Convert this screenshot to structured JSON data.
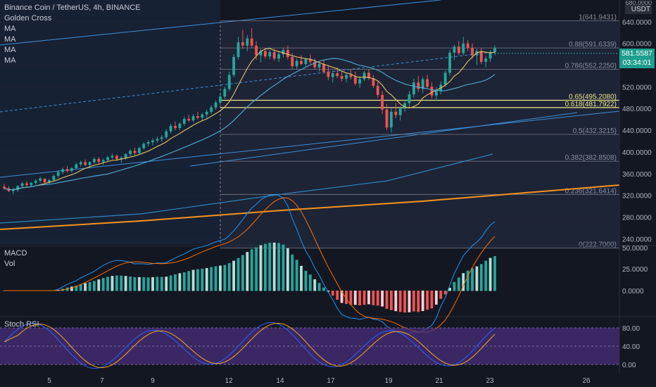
{
  "legend": {
    "title": "Binance Coin / TetherUS, 4h, BINANCE",
    "lines": [
      "Golden Cross",
      "MA",
      "MA",
      "MA",
      "MA"
    ]
  },
  "price_tag": {
    "price": "581.5587",
    "countdown": "03:34:01",
    "unit": "USDT",
    "top_label": "680.0000"
  },
  "panes": {
    "macd_label": "MACD",
    "vol_label": "Vol",
    "stoch_label": "Stoch RSI"
  },
  "colors": {
    "background": "#131722",
    "up": "#26a69a",
    "down": "#ef5350",
    "ma_fast": "#e9c46a",
    "ma_mid": "#4fb0d8",
    "ma_slow": "#2e86c1",
    "ma_long": "#f7931a",
    "fib_gold": "#f0e68c",
    "fib_gray": "#787b86",
    "channel": "#3d8fd8",
    "stoch_k": "#2962ff",
    "stoch_d": "#f5a623",
    "stoch_band": "#4a2d7a"
  },
  "chart_data": {
    "type": "candlestick",
    "title": "Binance Coin / TetherUS, 4h, BINANCE",
    "x_ticks": [
      "5",
      "7",
      "9",
      "12",
      "14",
      "17",
      "19",
      "21",
      "23",
      "26"
    ],
    "y_ticks": [
      "640.0000",
      "600.0000",
      "560.0000",
      "520.0000",
      "480.0000",
      "440.0000",
      "400.0000",
      "360.0000",
      "320.0000",
      "280.0000",
      "240.0000"
    ],
    "ylim": [
      230,
      680
    ],
    "fib_levels": [
      {
        "ratio": "1",
        "value": 641.9431,
        "label": "1(641.9431)"
      },
      {
        "ratio": "0.88",
        "value": 591.6339,
        "label": "0.88(591.6339)"
      },
      {
        "ratio": "0.786",
        "value": 552.225,
        "label": "0.786(552.2250)"
      },
      {
        "ratio": "0.65",
        "value": 495.208,
        "label": "0.65(495.2080)"
      },
      {
        "ratio": "0.618",
        "value": 481.7922,
        "label": "0.618(481.7922)"
      },
      {
        "ratio": "0.5",
        "value": 432.3215,
        "label": "0.5(432.3215)"
      },
      {
        "ratio": "0.382",
        "value": 382.8508,
        "label": "0.382(382.8508)"
      },
      {
        "ratio": "0.236",
        "value": 321.6414,
        "label": "0.236(321.6414)"
      },
      {
        "ratio": "0",
        "value": 222.7,
        "label": "0(222.7000)"
      }
    ],
    "candles": [
      [
        336,
        341,
        330,
        333
      ],
      [
        333,
        337,
        326,
        328
      ],
      [
        328,
        334,
        322,
        330
      ],
      [
        330,
        339,
        326,
        337
      ],
      [
        337,
        345,
        333,
        342
      ],
      [
        342,
        346,
        336,
        339
      ],
      [
        339,
        344,
        335,
        343
      ],
      [
        343,
        350,
        340,
        347
      ],
      [
        347,
        354,
        343,
        351
      ],
      [
        351,
        349,
        342,
        344
      ],
      [
        344,
        350,
        341,
        348
      ],
      [
        348,
        358,
        345,
        356
      ],
      [
        356,
        366,
        352,
        363
      ],
      [
        363,
        371,
        359,
        368
      ],
      [
        368,
        374,
        362,
        365
      ],
      [
        365,
        372,
        362,
        370
      ],
      [
        370,
        380,
        367,
        377
      ],
      [
        377,
        384,
        373,
        381
      ],
      [
        381,
        386,
        374,
        376
      ],
      [
        376,
        383,
        372,
        381
      ],
      [
        381,
        390,
        378,
        387
      ],
      [
        387,
        391,
        378,
        382
      ],
      [
        382,
        388,
        376,
        385
      ],
      [
        385,
        393,
        382,
        390
      ],
      [
        390,
        397,
        386,
        393
      ],
      [
        393,
        395,
        384,
        387
      ],
      [
        387,
        392,
        380,
        389
      ],
      [
        389,
        398,
        386,
        396
      ],
      [
        396,
        405,
        392,
        402
      ],
      [
        402,
        408,
        394,
        398
      ],
      [
        398,
        410,
        396,
        407
      ],
      [
        407,
        418,
        404,
        415
      ],
      [
        415,
        422,
        410,
        418
      ],
      [
        418,
        425,
        412,
        421
      ],
      [
        421,
        428,
        417,
        424
      ],
      [
        424,
        431,
        419,
        427
      ],
      [
        427,
        442,
        424,
        438
      ],
      [
        438,
        452,
        434,
        448
      ],
      [
        448,
        456,
        440,
        444
      ],
      [
        444,
        455,
        440,
        452
      ],
      [
        452,
        465,
        448,
        461
      ],
      [
        461,
        468,
        455,
        458
      ],
      [
        458,
        470,
        455,
        466
      ],
      [
        466,
        474,
        460,
        463
      ],
      [
        463,
        472,
        458,
        469
      ],
      [
        469,
        478,
        462,
        474
      ],
      [
        474,
        486,
        470,
        482
      ],
      [
        482,
        495,
        478,
        491
      ],
      [
        491,
        505,
        487,
        502
      ],
      [
        502,
        520,
        498,
        516
      ],
      [
        516,
        548,
        512,
        542
      ],
      [
        542,
        580,
        538,
        575
      ],
      [
        575,
        612,
        570,
        602
      ],
      [
        602,
        625,
        590,
        596
      ],
      [
        596,
        615,
        585,
        609
      ],
      [
        609,
        628,
        592,
        596
      ],
      [
        596,
        604,
        570,
        578
      ],
      [
        578,
        590,
        565,
        586
      ],
      [
        586,
        592,
        572,
        576
      ],
      [
        576,
        588,
        570,
        584
      ],
      [
        584,
        590,
        568,
        572
      ],
      [
        572,
        585,
        566,
        580
      ],
      [
        580,
        592,
        574,
        588
      ],
      [
        588,
        596,
        570,
        575
      ],
      [
        575,
        582,
        553,
        558
      ],
      [
        558,
        572,
        552,
        568
      ],
      [
        568,
        578,
        560,
        562
      ],
      [
        562,
        574,
        558,
        571
      ],
      [
        571,
        580,
        562,
        566
      ],
      [
        566,
        572,
        552,
        556
      ],
      [
        556,
        566,
        548,
        562
      ],
      [
        562,
        570,
        544,
        548
      ],
      [
        548,
        558,
        532,
        538
      ],
      [
        538,
        550,
        528,
        545
      ],
      [
        545,
        556,
        536,
        540
      ],
      [
        540,
        548,
        530,
        535
      ],
      [
        535,
        546,
        528,
        542
      ],
      [
        542,
        552,
        534,
        538
      ],
      [
        538,
        548,
        522,
        526
      ],
      [
        526,
        540,
        518,
        534
      ],
      [
        534,
        550,
        530,
        546
      ],
      [
        546,
        552,
        532,
        536
      ],
      [
        536,
        542,
        518,
        522
      ],
      [
        522,
        530,
        500,
        505
      ],
      [
        505,
        512,
        470,
        478
      ],
      [
        478,
        488,
        440,
        445
      ],
      [
        445,
        480,
        436,
        474
      ],
      [
        474,
        490,
        462,
        468
      ],
      [
        468,
        484,
        458,
        480
      ],
      [
        480,
        496,
        474,
        490
      ],
      [
        490,
        512,
        484,
        506
      ],
      [
        506,
        535,
        500,
        528
      ],
      [
        528,
        540,
        510,
        516
      ],
      [
        516,
        538,
        508,
        534
      ],
      [
        534,
        542,
        516,
        520
      ],
      [
        520,
        528,
        498,
        504
      ],
      [
        504,
        520,
        494,
        512
      ],
      [
        512,
        530,
        506,
        524
      ],
      [
        524,
        550,
        520,
        546
      ],
      [
        546,
        588,
        540,
        583
      ],
      [
        583,
        598,
        570,
        594
      ],
      [
        594,
        604,
        578,
        582
      ],
      [
        582,
        612,
        578,
        600
      ],
      [
        600,
        606,
        586,
        592
      ],
      [
        592,
        600,
        572,
        578
      ],
      [
        578,
        590,
        560,
        586
      ],
      [
        586,
        592,
        562,
        566
      ],
      [
        566,
        576,
        556,
        572
      ],
      [
        572,
        588,
        566,
        584
      ],
      [
        584,
        596,
        578,
        592
      ]
    ]
  }
}
